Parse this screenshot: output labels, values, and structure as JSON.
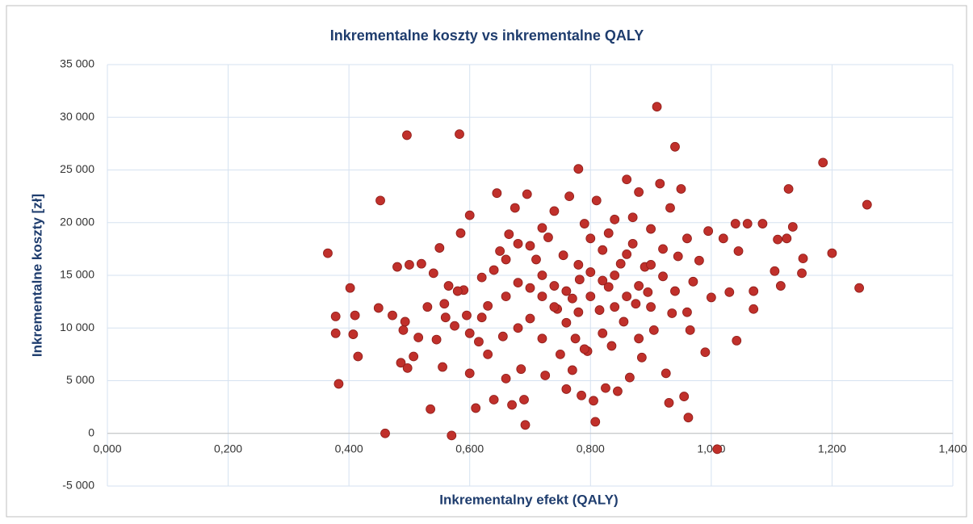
{
  "chart_data": {
    "type": "scatter",
    "title": "Inkrementalne koszty vs inkrementalne QALY",
    "x_label": "Inkrementalny efekt (QALY)",
    "y_label": "Inkrementalne koszty [zł]",
    "color": "#c0302b",
    "grid": true,
    "xlim": [
      0,
      1.4
    ],
    "ylim": [
      -5000,
      35000
    ],
    "xticks": [
      {
        "value": 0,
        "label": "0,000"
      },
      {
        "value": 0.2,
        "label": "0,200"
      },
      {
        "value": 0.4,
        "label": "0,400"
      },
      {
        "value": 0.6,
        "label": "0,600"
      },
      {
        "value": 0.8,
        "label": "0,800"
      },
      {
        "value": 1.0,
        "label": "1,000"
      },
      {
        "value": 1.2,
        "label": "1,200"
      },
      {
        "value": 1.4,
        "label": "1,400"
      }
    ],
    "yticks": [
      {
        "value": -5000,
        "label": "-5 000"
      },
      0,
      {
        "value": 5000,
        "label": "5 000"
      },
      {
        "value": 10000,
        "label": "10 000"
      },
      {
        "value": 15000,
        "label": "15 000"
      },
      {
        "value": 20000,
        "label": "20 000"
      },
      {
        "value": 25000,
        "label": "25 000"
      },
      {
        "value": 30000,
        "label": "30 000"
      },
      {
        "value": 35000,
        "label": "35 000"
      }
    ],
    "x": [
      0.365,
      0.378,
      0.378,
      0.383,
      0.402,
      0.407,
      0.41,
      0.415,
      0.449,
      0.452,
      0.46,
      0.472,
      0.48,
      0.486,
      0.49,
      0.493,
      0.496,
      0.497,
      0.5,
      0.507,
      0.515,
      0.52,
      0.53,
      0.535,
      0.54,
      0.545,
      0.55,
      0.555,
      0.558,
      0.565,
      0.57,
      0.575,
      0.583,
      0.585,
      0.59,
      0.595,
      0.6,
      0.6,
      0.61,
      0.615,
      0.62,
      0.63,
      0.64,
      0.645,
      0.65,
      0.655,
      0.66,
      0.665,
      0.67,
      0.675,
      0.68,
      0.685,
      0.69,
      0.692,
      0.695,
      0.7,
      0.71,
      0.72,
      0.725,
      0.73,
      0.74,
      0.745,
      0.75,
      0.755,
      0.76,
      0.765,
      0.77,
      0.775,
      0.78,
      0.782,
      0.785,
      0.79,
      0.795,
      0.8,
      0.805,
      0.808,
      0.81,
      0.815,
      0.82,
      0.825,
      0.83,
      0.835,
      0.84,
      0.845,
      0.85,
      0.855,
      0.86,
      0.865,
      0.87,
      0.875,
      0.88,
      0.885,
      0.89,
      0.895,
      0.9,
      0.905,
      0.91,
      0.915,
      0.92,
      0.925,
      0.93,
      0.932,
      0.935,
      0.94,
      0.945,
      0.95,
      0.955,
      0.96,
      0.962,
      0.965,
      0.97,
      0.98,
      0.99,
      0.995,
      1.0,
      1.01,
      1.02,
      1.03,
      1.04,
      1.042,
      1.045,
      1.06,
      1.07,
      1.07,
      1.085,
      1.105,
      1.11,
      1.115,
      1.125,
      1.128,
      1.135,
      1.15,
      1.152,
      1.185,
      1.2,
      1.245,
      1.258,
      0.6,
      0.62,
      0.64,
      0.66,
      0.68,
      0.7,
      0.7,
      0.72,
      0.72,
      0.74,
      0.74,
      0.76,
      0.76,
      0.78,
      0.78,
      0.8,
      0.8,
      0.82,
      0.82,
      0.84,
      0.84,
      0.86,
      0.86,
      0.88,
      0.88,
      0.9,
      0.9,
      0.92,
      0.94,
      0.96,
      0.68,
      0.66,
      0.63,
      0.58,
      0.56,
      0.72,
      0.77,
      0.83,
      0.87,
      0.79
    ],
    "values": [
      17100,
      11100,
      9500,
      4700,
      13800,
      9400,
      11200,
      7300,
      11900,
      22100,
      0,
      11200,
      15800,
      6700,
      9800,
      10600,
      28300,
      6200,
      16000,
      7300,
      9100,
      16100,
      12000,
      2300,
      15200,
      8900,
      17600,
      6300,
      12300,
      14000,
      -200,
      10200,
      28400,
      19000,
      13600,
      11200,
      20700,
      5700,
      2400,
      8700,
      14800,
      12100,
      3200,
      22800,
      17300,
      9200,
      5200,
      18900,
      2700,
      21400,
      14300,
      6100,
      3200,
      800,
      22700,
      10900,
      16500,
      13000,
      5500,
      18600,
      21100,
      11800,
      7500,
      16900,
      4200,
      22500,
      12800,
      9000,
      25100,
      14600,
      3600,
      19900,
      7800,
      15300,
      3100,
      1100,
      22100,
      11700,
      17400,
      4300,
      13900,
      8300,
      20300,
      4000,
      16100,
      10600,
      24100,
      5300,
      18000,
      12300,
      22900,
      7200,
      15800,
      13400,
      19400,
      9800,
      31000,
      23700,
      14900,
      5700,
      2900,
      21400,
      11400,
      27200,
      16800,
      23200,
      3500,
      18500,
      1500,
      9800,
      14400,
      16400,
      7700,
      19200,
      12900,
      -1500,
      18500,
      13400,
      19900,
      8800,
      17300,
      19900,
      11800,
      13500,
      19900,
      15400,
      18400,
      14000,
      18500,
      23200,
      19600,
      15200,
      16600,
      25700,
      17100,
      13800,
      21700,
      9500,
      11000,
      15500,
      13000,
      10000,
      13800,
      17800,
      15000,
      9000,
      14000,
      12000,
      13500,
      10500,
      16000,
      11500,
      13000,
      18500,
      14500,
      9500,
      15000,
      12000,
      17000,
      13000,
      14000,
      9000,
      16000,
      12000,
      17500,
      13500,
      11500,
      18000,
      16500,
      7500,
      13500,
      11000,
      19500,
      6000,
      19000,
      20500,
      8000
    ]
  }
}
